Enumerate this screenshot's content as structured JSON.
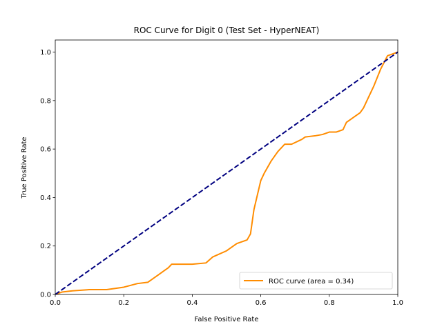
{
  "chart_data": {
    "type": "line",
    "title": "ROC Curve for Digit 0 (Test Set - HyperNEAT)",
    "xlabel": "False Positive Rate",
    "ylabel": "True Positive Rate",
    "xlim": [
      0.0,
      1.0
    ],
    "ylim": [
      0.0,
      1.05
    ],
    "xticks": [
      "0.0",
      "0.2",
      "0.4",
      "0.6",
      "0.8",
      "1.0"
    ],
    "yticks": [
      "0.0",
      "0.2",
      "0.4",
      "0.6",
      "0.8",
      "1.0"
    ],
    "grid": false,
    "legend_position": "lower-right",
    "series": [
      {
        "name": "ROC curve (area = 0.34)",
        "color": "#ff8c00",
        "style": "solid",
        "x": [
          0.0,
          0.02,
          0.05,
          0.1,
          0.15,
          0.2,
          0.24,
          0.27,
          0.3,
          0.32,
          0.33,
          0.34,
          0.36,
          0.38,
          0.4,
          0.44,
          0.46,
          0.5,
          0.53,
          0.56,
          0.57,
          0.58,
          0.6,
          0.61,
          0.63,
          0.65,
          0.67,
          0.69,
          0.72,
          0.73,
          0.76,
          0.78,
          0.8,
          0.82,
          0.84,
          0.85,
          0.87,
          0.89,
          0.9,
          0.91,
          0.93,
          0.95,
          0.97,
          0.98,
          1.0
        ],
        "y": [
          0.0,
          0.01,
          0.015,
          0.02,
          0.02,
          0.03,
          0.045,
          0.05,
          0.08,
          0.1,
          0.11,
          0.125,
          0.125,
          0.125,
          0.125,
          0.13,
          0.155,
          0.18,
          0.21,
          0.225,
          0.25,
          0.35,
          0.47,
          0.5,
          0.55,
          0.59,
          0.62,
          0.62,
          0.64,
          0.65,
          0.655,
          0.66,
          0.67,
          0.67,
          0.68,
          0.71,
          0.73,
          0.75,
          0.77,
          0.8,
          0.86,
          0.93,
          0.985,
          0.99,
          1.0
        ]
      },
      {
        "name": "",
        "color": "#000080",
        "style": "dashed",
        "x": [
          0.0,
          1.0
        ],
        "y": [
          0.0,
          1.0
        ]
      }
    ]
  }
}
